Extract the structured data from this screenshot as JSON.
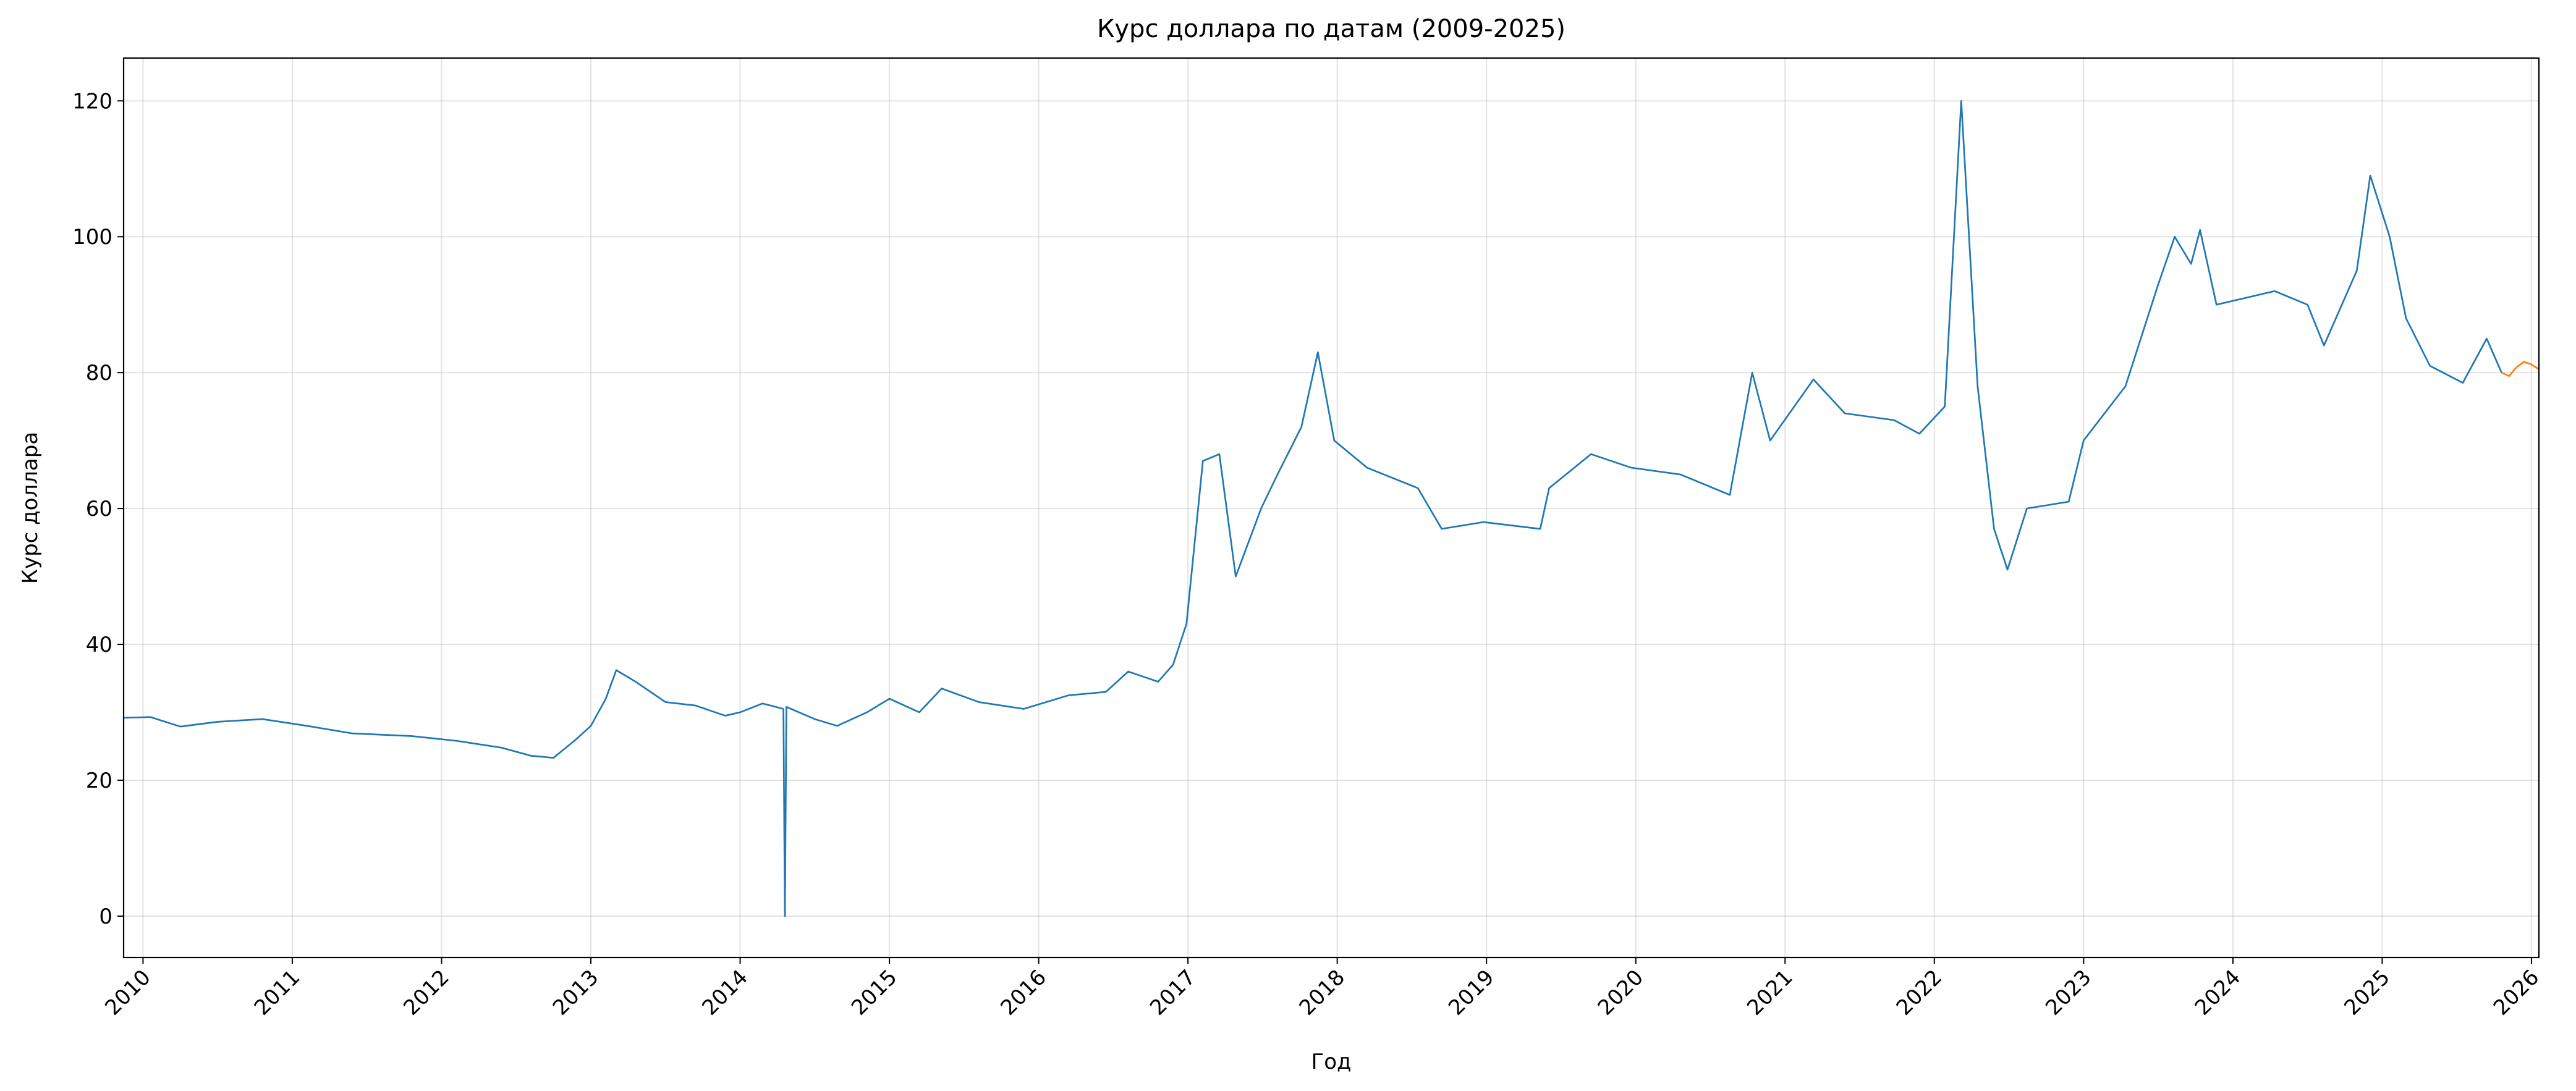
{
  "chart_data": {
    "type": "line",
    "title": "Курс доллара по датам (2009-2025)",
    "xlabel": "Год",
    "ylabel": "Курс доллара",
    "series": [
      {
        "color": "#1f77b4",
        "x": [
          2009.87,
          2010.05,
          2010.25,
          2010.5,
          2010.8,
          2011.1,
          2011.4,
          2011.8,
          2012.1,
          2012.4,
          2012.6,
          2012.75,
          2012.9,
          2013.0,
          2013.1,
          2013.17,
          2013.3,
          2013.5,
          2013.7,
          2013.9,
          2014.0,
          2014.15,
          2014.29,
          2014.3,
          2014.31,
          2014.5,
          2014.65,
          2014.85,
          2015.0,
          2015.2,
          2015.35,
          2015.6,
          2015.9,
          2016.2,
          2016.45,
          2016.6,
          2016.8,
          2016.9,
          2016.99,
          2017.1,
          2017.21,
          2017.32,
          2017.49,
          2017.6,
          2017.76,
          2017.87,
          2017.98,
          2018.2,
          2018.54,
          2018.7,
          2018.98,
          2019.36,
          2019.42,
          2019.7,
          2019.97,
          2020.3,
          2020.63,
          2020.78,
          2020.9,
          2021.19,
          2021.4,
          2021.73,
          2021.9,
          2022.07,
          2022.18,
          2022.29,
          2022.4,
          2022.49,
          2022.62,
          2022.9,
          2023.0,
          2023.28,
          2023.5,
          2023.61,
          2023.72,
          2023.78,
          2023.89,
          2024.28,
          2024.5,
          2024.61,
          2024.83,
          2024.92,
          2025.05,
          2025.16,
          2025.32,
          2025.54,
          2025.7,
          2025.8
        ],
        "values": [
          29.2,
          29.3,
          27.9,
          28.6,
          29.0,
          28.0,
          26.9,
          26.5,
          25.8,
          24.8,
          23.6,
          23.3,
          26.0,
          28.0,
          32.0,
          36.2,
          34.5,
          31.5,
          31.0,
          29.5,
          30.0,
          31.3,
          30.5,
          0,
          30.8,
          29.0,
          28.0,
          30.0,
          32.0,
          30.0,
          33.5,
          31.5,
          30.5,
          32.5,
          33.0,
          36.0,
          34.5,
          37.0,
          43.0,
          67.0,
          68.0,
          50.0,
          60.0,
          65.0,
          72.0,
          83.0,
          70.0,
          66.0,
          63.0,
          57.0,
          58.0,
          57.0,
          63.0,
          68.0,
          66.0,
          65.0,
          62.0,
          80.0,
          70.0,
          79.0,
          74.0,
          73.0,
          71.0,
          75.0,
          120.0,
          78.0,
          57.0,
          51.0,
          60.0,
          61.0,
          70.0,
          78.0,
          93.0,
          100.0,
          96.0,
          101.0,
          90.0,
          92.0,
          90.0,
          84.0,
          95.0,
          109.0,
          100.0,
          88.0,
          81.0,
          78.5,
          85.0,
          80.0
        ]
      },
      {
        "color": "#ff7f0e",
        "x": [
          2025.8,
          2025.85,
          2025.9,
          2025.95,
          2026.0,
          2026.05
        ],
        "values": [
          80.0,
          79.5,
          80.8,
          81.6,
          81.2,
          80.5
        ]
      }
    ],
    "xlim": [
      2009.87,
      2026.05
    ],
    "xticks": [
      2010,
      2011,
      2012,
      2013,
      2014,
      2015,
      2016,
      2017,
      2018,
      2019,
      2020,
      2021,
      2022,
      2023,
      2024,
      2025,
      2026
    ],
    "ylim": [
      -6.1,
      126.3
    ],
    "yticks": [
      0,
      20,
      40,
      60,
      80,
      100,
      120
    ],
    "grid": true
  }
}
